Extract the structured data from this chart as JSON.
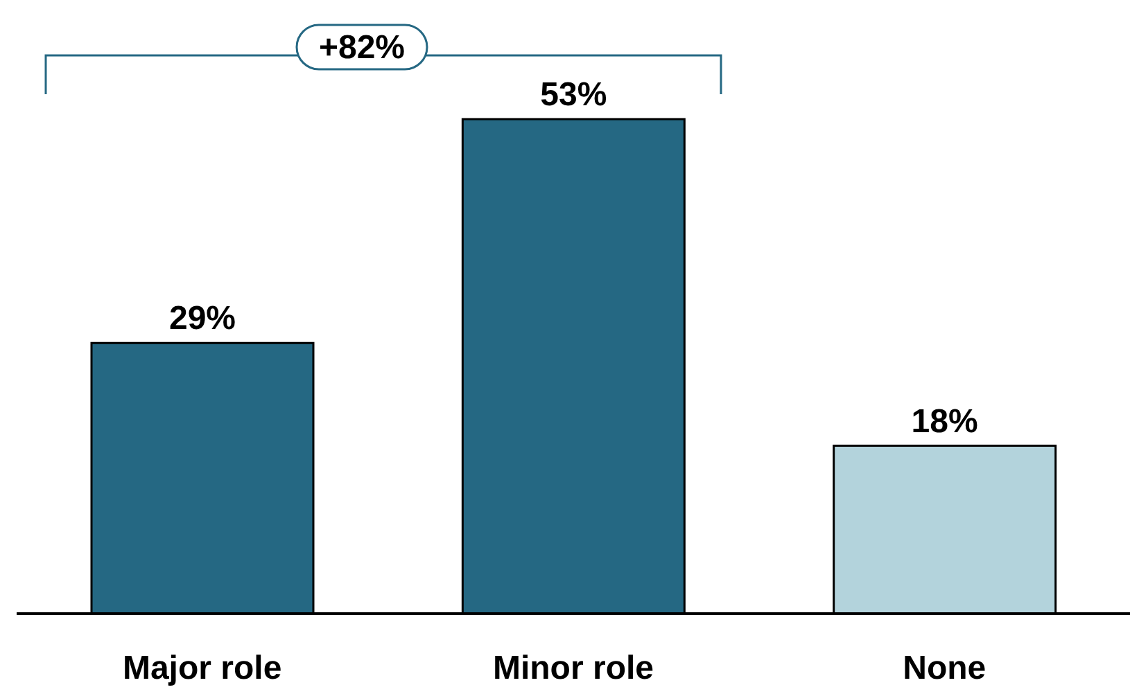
{
  "chart_data": {
    "type": "bar",
    "categories": [
      "Major role",
      "Minor role",
      "None"
    ],
    "values": [
      29,
      53,
      18
    ],
    "value_labels": [
      "29%",
      "53%",
      "18%"
    ],
    "colors": [
      "#256883",
      "#256883",
      "#b3d3dc"
    ],
    "annotations": [
      "+82%"
    ],
    "grid": false,
    "legend": false
  }
}
